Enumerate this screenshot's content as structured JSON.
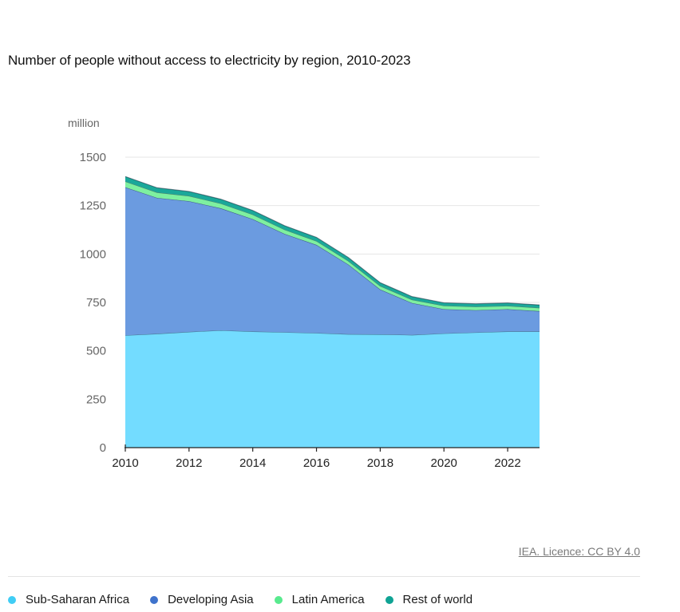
{
  "colors": {
    "sub_saharan_africa": "#73dcff",
    "developing_asia": "#6b9be0",
    "latin_america": "#7ef0a0",
    "rest_of_world": "#1aa89a",
    "legend_ssa": "#40cdf5",
    "legend_asia": "#3f73cc",
    "legend_latam": "#58ea8e",
    "legend_row": "#0fa394"
  },
  "chart_data": {
    "type": "area",
    "stacked": true,
    "title": "Number of people without access to electricity by region, 2010-2023",
    "ylabel": "million",
    "xlabel": "",
    "ylim": [
      0,
      1500
    ],
    "yticks": [
      0,
      250,
      500,
      750,
      1000,
      1250,
      1500
    ],
    "xticks": [
      2010,
      2012,
      2014,
      2016,
      2018,
      2020,
      2022
    ],
    "grid": true,
    "legend_position": "bottom",
    "x": [
      2010,
      2011,
      2012,
      2013,
      2014,
      2015,
      2016,
      2017,
      2018,
      2019,
      2020,
      2021,
      2022,
      2023
    ],
    "series": [
      {
        "name": "Sub-Saharan Africa",
        "values": [
          580,
          588,
          598,
          606,
          600,
          596,
          592,
          586,
          585,
          582,
          590,
          595,
          600,
          600
        ]
      },
      {
        "name": "Developing Asia",
        "values": [
          765,
          702,
          675,
          630,
          580,
          508,
          455,
          360,
          232,
          165,
          125,
          115,
          115,
          105
        ]
      },
      {
        "name": "Latin America",
        "values": [
          30,
          28,
          27,
          25,
          24,
          22,
          20,
          18,
          18,
          17,
          18,
          18,
          17,
          17
        ]
      },
      {
        "name": "Rest of world",
        "values": [
          25,
          24,
          23,
          22,
          21,
          20,
          19,
          18,
          17,
          16,
          15,
          15,
          15,
          15
        ]
      }
    ]
  },
  "credit": "IEA. Licence: CC BY 4.0"
}
